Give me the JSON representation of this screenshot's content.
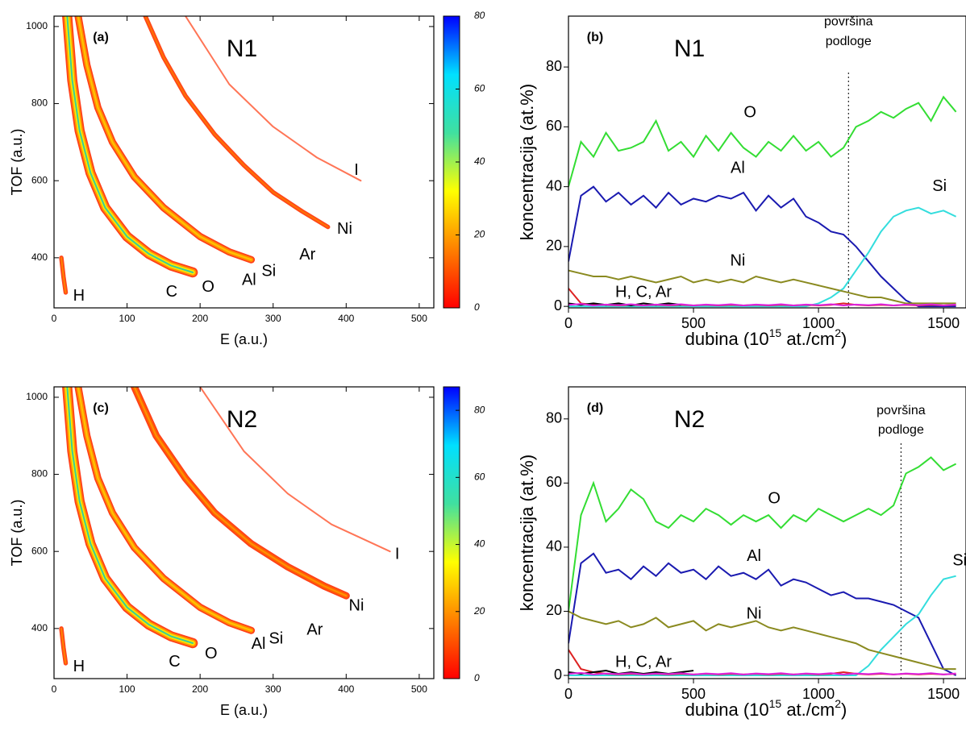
{
  "chart_data": [
    {
      "type": "density",
      "panel": "(a)",
      "title": "N1",
      "xlabel": "E (a.u.)",
      "ylabel": "TOF (a.u.)",
      "xlim": [
        0,
        520
      ],
      "ylim": [
        270,
        1027
      ],
      "xticks": [
        0,
        100,
        200,
        300,
        400,
        500
      ],
      "yticks": [
        400,
        600,
        800,
        1000
      ],
      "clim": [
        0,
        80
      ],
      "cticks": [
        0,
        20,
        40,
        60,
        80
      ],
      "colormap": [
        "#ff0000",
        "#ff8000",
        "#ffff00",
        "#40e0a0",
        "#00e0ff",
        "#0000ff"
      ],
      "bands": [
        {
          "x": [
            10,
            13,
            16
          ],
          "y": [
            400,
            350,
            310
          ],
          "colors": [
            "#ff3300",
            "#ff8800"
          ]
        },
        {
          "x": [
            18,
            25,
            35,
            50,
            70,
            100,
            130,
            160,
            190
          ],
          "y": [
            1027,
            860,
            730,
            620,
            530,
            455,
            410,
            380,
            362
          ],
          "colors": [
            "#ff2a00",
            "#ff9900",
            "#ffee00",
            "#22ccaa"
          ]
        },
        {
          "x": [
            33,
            45,
            60,
            80,
            110,
            150,
            200,
            240,
            270
          ],
          "y": [
            1027,
            900,
            790,
            700,
            610,
            530,
            455,
            415,
            395
          ],
          "colors": [
            "#ff2a00",
            "#ff9900",
            "#ffcc00"
          ]
        },
        {
          "x": [
            125,
            150,
            180,
            220,
            260,
            300,
            340,
            375
          ],
          "y": [
            1027,
            920,
            820,
            720,
            640,
            570,
            520,
            480
          ],
          "colors": [
            "#ff3300",
            "#ff7700"
          ]
        },
        {
          "x": [
            180,
            240,
            300,
            360,
            420
          ],
          "y": [
            1027,
            850,
            740,
            660,
            600
          ],
          "colors": [
            "#ff6644"
          ]
        }
      ],
      "annotations": [
        {
          "text": "H",
          "x": 34,
          "y": 300
        },
        {
          "text": "C",
          "x": 161,
          "y": 310
        },
        {
          "text": "O",
          "x": 211,
          "y": 323
        },
        {
          "text": "Al",
          "x": 267,
          "y": 341
        },
        {
          "text": "Si",
          "x": 294,
          "y": 364
        },
        {
          "text": "Ar",
          "x": 347,
          "y": 406
        },
        {
          "text": "Ni",
          "x": 398,
          "y": 473
        },
        {
          "text": "I",
          "x": 414,
          "y": 626
        }
      ]
    },
    {
      "type": "line",
      "panel": "(b)",
      "title": "N1",
      "xlabel": [
        "dubina (10",
        "15",
        " at./cm",
        "2",
        ")"
      ],
      "ylabel": "koncentracija (at.%)",
      "xlim": [
        0,
        1590
      ],
      "ylim": [
        -0.5,
        97
      ],
      "xticks": [
        0,
        500,
        1000,
        1500
      ],
      "yticks": [
        0,
        20,
        40,
        60,
        80
      ],
      "surface": 1120,
      "x": [
        0,
        50,
        100,
        150,
        200,
        250,
        300,
        350,
        400,
        450,
        500,
        550,
        600,
        650,
        700,
        750,
        800,
        850,
        900,
        950,
        1000,
        1050,
        1100,
        1150,
        1200,
        1250,
        1300,
        1350,
        1400,
        1450,
        1500,
        1550
      ],
      "series": [
        {
          "color": "#33dd33",
          "values": [
            40,
            55,
            50,
            58,
            52,
            53,
            55,
            62,
            52,
            55,
            50,
            57,
            52,
            58,
            53,
            50,
            55,
            52,
            57,
            52,
            55,
            50,
            53,
            60,
            62,
            65,
            63,
            66,
            68,
            62,
            70,
            65
          ]
        },
        {
          "color": "#1a1ab0",
          "values": [
            15,
            37,
            40,
            35,
            38,
            34,
            37,
            33,
            38,
            34,
            36,
            35,
            37,
            36,
            38,
            32,
            37,
            33,
            36,
            30,
            28,
            25,
            24,
            20,
            15,
            10,
            6,
            2,
            0,
            0,
            0,
            0
          ]
        },
        {
          "color": "#33dddd",
          "values": [
            0,
            0,
            0,
            0,
            0,
            0,
            0,
            0,
            0,
            0,
            0,
            0,
            0,
            0,
            0,
            0,
            0,
            0,
            0,
            0,
            1,
            3,
            6,
            12,
            18,
            25,
            30,
            32,
            33,
            31,
            32,
            30
          ]
        },
        {
          "color": "#8a8a20",
          "values": [
            12,
            11,
            10,
            10,
            9,
            10,
            9,
            8,
            9,
            10,
            8,
            9,
            8,
            9,
            8,
            10,
            9,
            8,
            9,
            8,
            7,
            6,
            5,
            4,
            3,
            3,
            2,
            1,
            1,
            1,
            1,
            1
          ]
        },
        {
          "color": "#dd2222",
          "values": [
            6,
            1,
            0.5,
            0.5,
            0.3,
            0.5,
            0.3,
            0.5,
            0.3,
            0.5,
            0.3,
            0.5,
            0.3,
            0.5,
            0.3,
            0.5,
            0.3,
            0.5,
            0.3,
            0.5,
            0.3,
            0.5,
            1,
            0.5,
            0.3,
            0.5,
            0.3,
            0.5,
            0.3,
            0.5,
            0.3,
            0.5
          ]
        },
        {
          "color": "#000000",
          "values": [
            1,
            0.5,
            1,
            0.5,
            1,
            0.3,
            1,
            0.5,
            1,
            0.5,
            null,
            null,
            null,
            null,
            null,
            null,
            null,
            null,
            null,
            null,
            null,
            null,
            null,
            null,
            null,
            null,
            null,
            null,
            null,
            null,
            null,
            null
          ]
        },
        {
          "color": "#dd22dd",
          "values": [
            0.5,
            0.8,
            0.3,
            0.6,
            0.4,
            0.7,
            0.3,
            0.6,
            0.4,
            0.7,
            0.3,
            0.6,
            0.4,
            0.7,
            0.3,
            0.6,
            0.4,
            0.7,
            0.3,
            0.6,
            0.4,
            0.7,
            0.3,
            0.6,
            0.4,
            0.7,
            0.3,
            0.6,
            0.4,
            0.7,
            0.3,
            0.6
          ]
        }
      ],
      "annotations": [
        {
          "text": "O",
          "x": 726,
          "y": 64.6
        },
        {
          "text": "Al",
          "x": 677,
          "y": 46
        },
        {
          "text": "Si",
          "x": 1484,
          "y": 40
        },
        {
          "text": "Ni",
          "x": 677,
          "y": 15
        },
        {
          "text": "H, C, Ar",
          "x": 300,
          "y": 4.6
        },
        {
          "text": "površina",
          "x": 1120,
          "y": 95
        },
        {
          "text": "podloge",
          "x": 1120,
          "y": 88.5
        }
      ]
    },
    {
      "type": "density",
      "panel": "(c)",
      "title": "N2",
      "xlabel": "E (a.u.)",
      "ylabel": "TOF (a.u.)",
      "xlim": [
        0,
        520
      ],
      "ylim": [
        270,
        1027
      ],
      "xticks": [
        0,
        100,
        200,
        300,
        400,
        500
      ],
      "yticks": [
        400,
        600,
        800,
        1000
      ],
      "clim": [
        0,
        87
      ],
      "cticks": [
        0,
        20,
        40,
        60,
        80
      ],
      "colormap": [
        "#ff0000",
        "#ff8000",
        "#ffff00",
        "#40e0a0",
        "#00e0ff",
        "#0000ff"
      ],
      "bands": [
        {
          "x": [
            10,
            13,
            16
          ],
          "y": [
            400,
            350,
            310
          ],
          "colors": [
            "#ff3300",
            "#ff8800"
          ]
        },
        {
          "x": [
            18,
            25,
            35,
            50,
            70,
            100,
            130,
            160,
            190
          ],
          "y": [
            1027,
            860,
            730,
            620,
            530,
            455,
            410,
            380,
            362
          ],
          "colors": [
            "#ff2a00",
            "#ff9900",
            "#ffee00",
            "#22ccaa"
          ]
        },
        {
          "x": [
            33,
            45,
            60,
            80,
            110,
            150,
            200,
            240,
            270
          ],
          "y": [
            1027,
            900,
            790,
            700,
            610,
            530,
            455,
            415,
            395
          ],
          "colors": [
            "#ff2a00",
            "#ff9900",
            "#ffcc00"
          ]
        },
        {
          "x": [
            110,
            140,
            180,
            220,
            270,
            320,
            370,
            400
          ],
          "y": [
            1027,
            900,
            790,
            700,
            620,
            560,
            510,
            485
          ],
          "colors": [
            "#ff2a00",
            "#ff6600",
            "#ff9900"
          ]
        },
        {
          "x": [
            200,
            260,
            320,
            380,
            460
          ],
          "y": [
            1027,
            860,
            750,
            670,
            600
          ],
          "colors": [
            "#ff6644"
          ]
        }
      ],
      "annotations": [
        {
          "text": "H",
          "x": 34,
          "y": 300
        },
        {
          "text": "C",
          "x": 165,
          "y": 312
        },
        {
          "text": "O",
          "x": 215,
          "y": 333
        },
        {
          "text": "Al",
          "x": 280,
          "y": 358
        },
        {
          "text": "Si",
          "x": 304,
          "y": 372
        },
        {
          "text": "Ar",
          "x": 357,
          "y": 395
        },
        {
          "text": "Ni",
          "x": 414,
          "y": 458
        },
        {
          "text": "I",
          "x": 470,
          "y": 592
        }
      ]
    },
    {
      "type": "line",
      "panel": "(d)",
      "title": "N2",
      "xlabel": [
        "dubina (10",
        "15",
        " at./cm",
        "2",
        ")"
      ],
      "ylabel": "koncentracija (at.%)",
      "xlim": [
        0,
        1590
      ],
      "ylim": [
        -1,
        90
      ],
      "xticks": [
        0,
        500,
        1000,
        1500
      ],
      "yticks": [
        0,
        20,
        40,
        60,
        80
      ],
      "surface": 1330,
      "x": [
        0,
        50,
        100,
        150,
        200,
        250,
        300,
        350,
        400,
        450,
        500,
        550,
        600,
        650,
        700,
        750,
        800,
        850,
        900,
        950,
        1000,
        1050,
        1100,
        1150,
        1200,
        1250,
        1300,
        1350,
        1400,
        1450,
        1500,
        1550
      ],
      "series": [
        {
          "color": "#33dd33",
          "values": [
            20,
            50,
            60,
            48,
            52,
            58,
            55,
            48,
            46,
            50,
            48,
            52,
            50,
            47,
            50,
            48,
            50,
            46,
            50,
            48,
            52,
            50,
            48,
            50,
            52,
            50,
            53,
            63,
            65,
            68,
            64,
            66
          ]
        },
        {
          "color": "#1a1ab0",
          "values": [
            10,
            35,
            38,
            32,
            33,
            30,
            34,
            31,
            35,
            32,
            33,
            30,
            34,
            31,
            32,
            30,
            33,
            28,
            30,
            29,
            27,
            25,
            26,
            24,
            24,
            23,
            22,
            20,
            18,
            10,
            2,
            0
          ]
        },
        {
          "color": "#33dddd",
          "values": [
            0,
            0,
            0,
            0,
            0,
            0,
            0,
            0,
            0,
            0,
            0,
            0,
            0,
            0,
            0,
            0,
            0,
            0,
            0,
            0,
            0,
            0,
            0,
            0,
            3,
            8,
            12,
            16,
            19,
            25,
            30,
            31
          ]
        },
        {
          "color": "#8a8a20",
          "values": [
            20,
            18,
            17,
            16,
            17,
            15,
            16,
            18,
            15,
            16,
            17,
            14,
            16,
            15,
            16,
            17,
            15,
            14,
            15,
            14,
            13,
            12,
            11,
            10,
            8,
            7,
            6,
            5,
            4,
            3,
            2,
            2
          ]
        },
        {
          "color": "#dd2222",
          "values": [
            8,
            2,
            1,
            0.5,
            0.3,
            0.5,
            0.3,
            0.5,
            0.3,
            0.5,
            0.3,
            0.5,
            0.3,
            0.5,
            0.3,
            0.5,
            0.3,
            0.5,
            0.3,
            0.5,
            0.3,
            0.5,
            1,
            0.5,
            0.3,
            0.5,
            0.3,
            0.5,
            0.3,
            0.5,
            0.3,
            0.5
          ]
        },
        {
          "color": "#000000",
          "values": [
            1,
            0.5,
            1,
            1.5,
            0.5,
            1,
            0.5,
            1,
            0.5,
            1,
            1.5,
            null,
            null,
            null,
            null,
            null,
            null,
            null,
            null,
            null,
            null,
            null,
            null,
            null,
            null,
            null,
            null,
            null,
            null,
            null,
            null,
            null
          ]
        },
        {
          "color": "#dd22dd",
          "values": [
            0.5,
            0.8,
            0.3,
            0.6,
            0.4,
            0.7,
            0.3,
            0.6,
            0.4,
            0.7,
            0.3,
            0.6,
            0.4,
            0.7,
            0.3,
            0.6,
            0.4,
            0.7,
            0.3,
            0.6,
            0.4,
            0.7,
            0.3,
            0.6,
            0.4,
            0.7,
            0.3,
            0.6,
            0.4,
            0.7,
            0.3,
            0.6
          ]
        }
      ],
      "annotations": [
        {
          "text": "O",
          "x": 823,
          "y": 55
        },
        {
          "text": "Al",
          "x": 742,
          "y": 37
        },
        {
          "text": "Si",
          "x": 1565,
          "y": 35.6
        },
        {
          "text": "Ni",
          "x": 742,
          "y": 19
        },
        {
          "text": "H, C, Ar",
          "x": 300,
          "y": 4
        },
        {
          "text": "površina",
          "x": 1330,
          "y": 82.5
        },
        {
          "text": "podloge",
          "x": 1330,
          "y": 76.5
        }
      ]
    }
  ]
}
